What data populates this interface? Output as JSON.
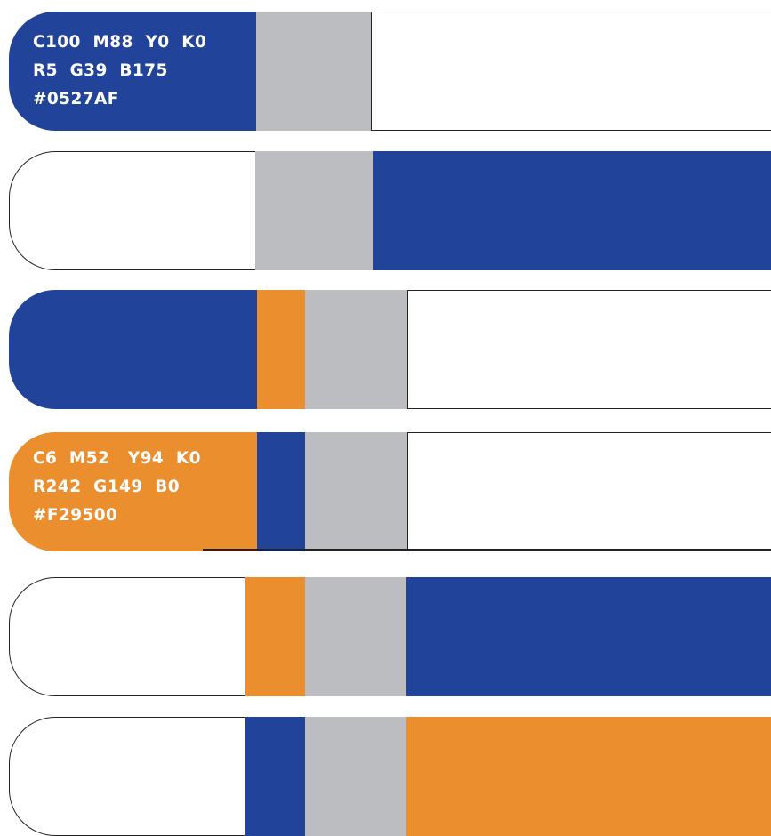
{
  "colors": {
    "blue": "#21449A",
    "orange": "#EA8E2E",
    "gray": "#BCBDC1",
    "white": "#FFFFFF",
    "outline": "#222222"
  },
  "swatches": {
    "blue": {
      "cmyk": "C100  M88  Y0  K0",
      "rgb": "R5  G39  B175",
      "hex": "#0527AF"
    },
    "orange": {
      "cmyk": "C6  M52   Y94  K0",
      "rgb": "R242  G149  B0",
      "hex": "#F29500"
    }
  },
  "rows": [
    {
      "cap": "blue",
      "bands": [
        "gray",
        "white"
      ]
    },
    {
      "cap": "white",
      "bands": [
        "gray",
        "blue"
      ]
    },
    {
      "cap": "blue",
      "bands": [
        "orange",
        "gray",
        "white"
      ]
    },
    {
      "cap": "orange",
      "bands": [
        "blue",
        "gray",
        "white"
      ]
    },
    {
      "cap": "white",
      "bands": [
        "orange",
        "gray",
        "blue"
      ]
    },
    {
      "cap": "white",
      "bands": [
        "blue",
        "gray",
        "orange"
      ]
    }
  ]
}
